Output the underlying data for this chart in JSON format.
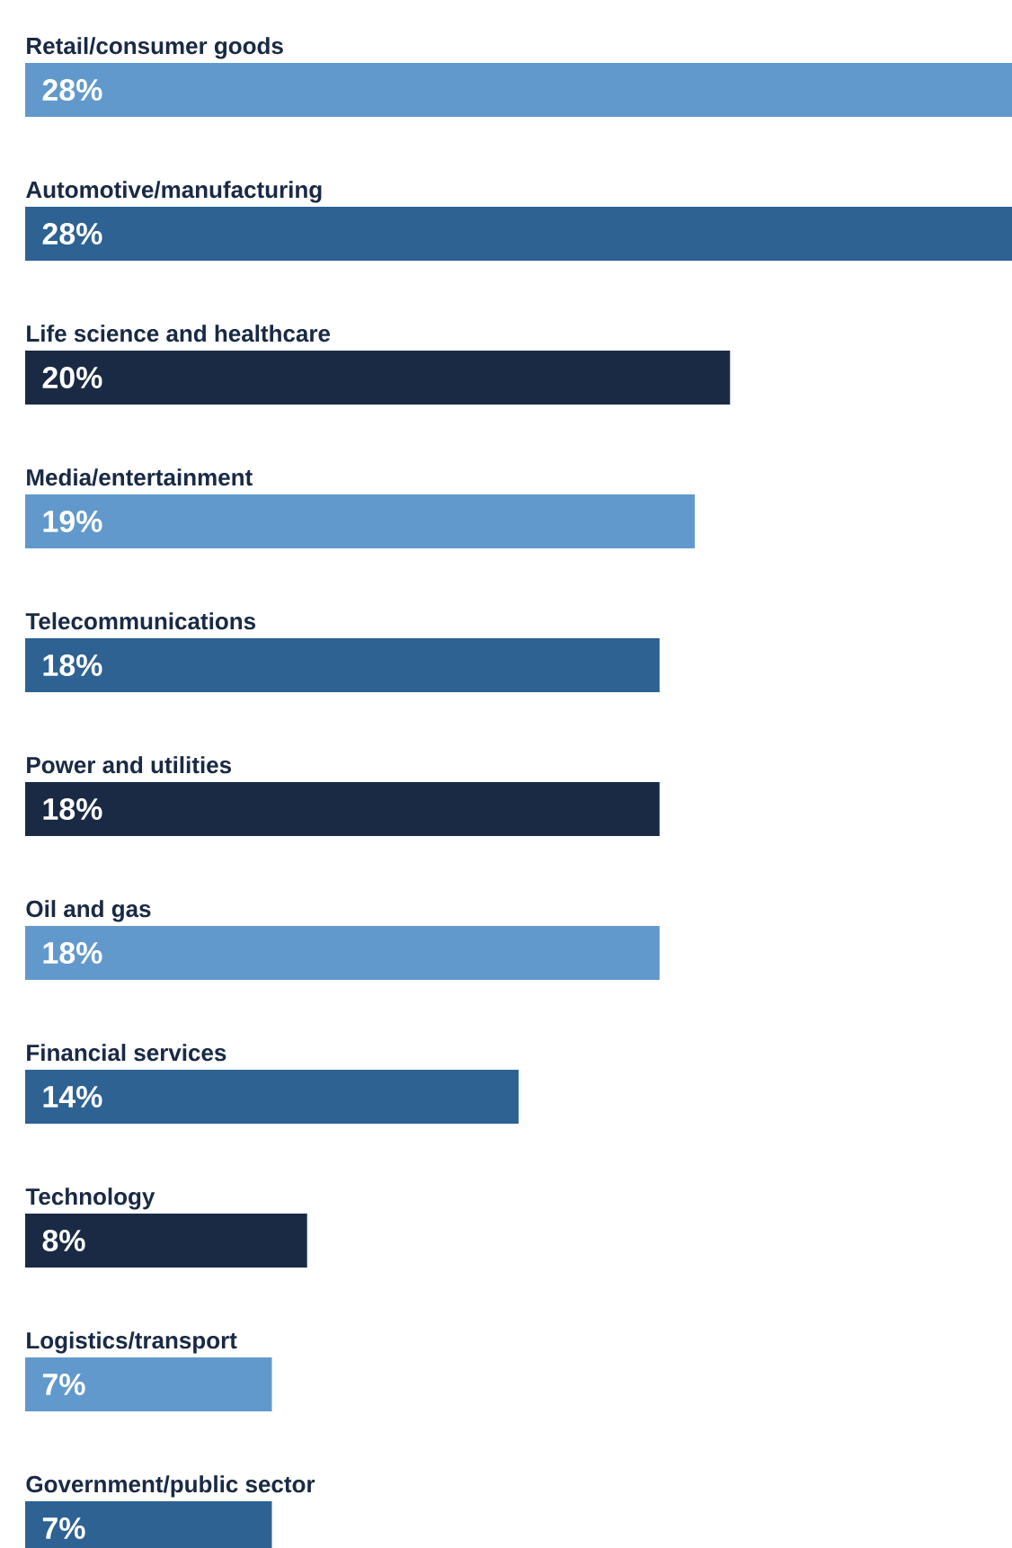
{
  "chart_data": {
    "type": "bar",
    "orientation": "horizontal",
    "categories": [
      "Retail/consumer goods",
      "Automotive/manufacturing",
      "Life science and healthcare",
      "Media/entertainment",
      "Telecommunications",
      "Power and utilities",
      "Oil and gas",
      "Financial services",
      "Technology",
      "Logistics/transport",
      "Government/public sector"
    ],
    "values": [
      28,
      28,
      20,
      19,
      18,
      18,
      18,
      14,
      8,
      7,
      7
    ],
    "value_labels": [
      "28%",
      "28%",
      "20%",
      "19%",
      "18%",
      "18%",
      "18%",
      "14%",
      "8%",
      "7%",
      "7%"
    ],
    "colors": [
      "#6199cc",
      "#2d6293",
      "#1a2a45",
      "#6199cc",
      "#2d6293",
      "#1a2a45",
      "#6199cc",
      "#2d6293",
      "#1a2a45",
      "#6199cc",
      "#2d6293"
    ],
    "xlim": [
      0,
      28
    ]
  }
}
